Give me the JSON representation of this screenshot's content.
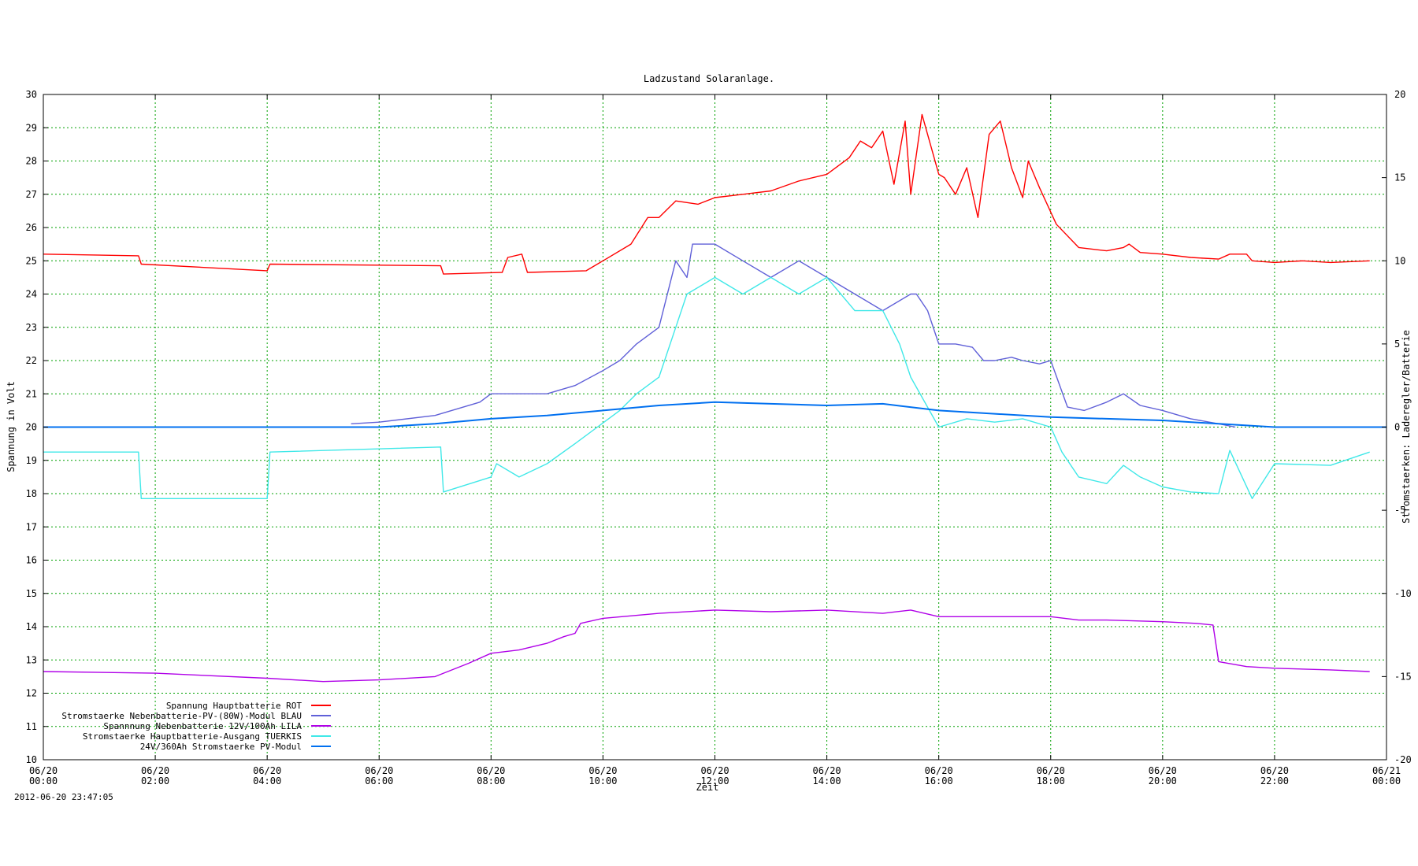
{
  "chart_data": {
    "type": "scatter",
    "title": "Ladzustand Solaranlage.",
    "xlabel": "Zeit",
    "ylabel": "Spannung in Volt",
    "y2label": "Stromstaerken: Laderegler/Batterie",
    "xlim": [
      0,
      24
    ],
    "ylim": [
      10,
      30
    ],
    "y2lim": [
      -20,
      20
    ],
    "grid": true,
    "legend_position": "bottom-left",
    "x_ticks": [
      {
        "date": "06/20",
        "time": "00:00"
      },
      {
        "date": "06/20",
        "time": "02:00"
      },
      {
        "date": "06/20",
        "time": "04:00"
      },
      {
        "date": "06/20",
        "time": "06:00"
      },
      {
        "date": "06/20",
        "time": "08:00"
      },
      {
        "date": "06/20",
        "time": "10:00"
      },
      {
        "date": "06/20",
        "time": "12:00"
      },
      {
        "date": "06/20",
        "time": "14:00"
      },
      {
        "date": "06/20",
        "time": "16:00"
      },
      {
        "date": "06/20",
        "time": "18:00"
      },
      {
        "date": "06/20",
        "time": "20:00"
      },
      {
        "date": "06/20",
        "time": "22:00"
      },
      {
        "date": "06/21",
        "time": "00:00"
      }
    ],
    "y_ticks": [
      "10",
      "11",
      "12",
      "13",
      "14",
      "15",
      "16",
      "17",
      "18",
      "19",
      "20",
      "21",
      "22",
      "23",
      "24",
      "25",
      "26",
      "27",
      "28",
      "29",
      "30"
    ],
    "y2_ticks": [
      "-20",
      "-15",
      "-10",
      "-5",
      "0",
      "5",
      "10",
      "15",
      "20"
    ],
    "series": [
      {
        "name": "Spannung Hauptbatterie ROT",
        "axis": "left",
        "color": "#ff0000",
        "x": [
          0,
          1.7,
          1.75,
          4,
          4.05,
          7.1,
          7.15,
          8.2,
          8.3,
          8.55,
          8.65,
          9.7,
          10,
          10.5,
          10.8,
          11,
          11.3,
          11.7,
          12,
          12.5,
          13,
          13.5,
          14,
          14.4,
          14.6,
          14.8,
          15,
          15.2,
          15.4,
          15.5,
          15.7,
          16,
          16.1,
          16.3,
          16.5,
          16.7,
          16.9,
          17.1,
          17.3,
          17.5,
          17.6,
          17.8,
          18.1,
          18.5,
          19,
          19.3,
          19.4,
          19.6,
          20,
          20.5,
          21,
          21.2,
          21.5,
          21.6,
          22,
          22.5,
          23,
          23.7
        ],
        "y": [
          25.2,
          25.15,
          24.9,
          24.7,
          24.9,
          24.85,
          24.6,
          24.65,
          25.1,
          25.2,
          24.65,
          24.7,
          25,
          25.5,
          26.3,
          26.3,
          26.8,
          26.7,
          26.9,
          27.0,
          27.1,
          27.4,
          27.6,
          28.1,
          28.6,
          28.4,
          28.9,
          27.3,
          29.2,
          27.0,
          29.4,
          27.6,
          27.5,
          27.0,
          27.8,
          26.3,
          28.8,
          29.2,
          27.8,
          26.9,
          28.0,
          27.2,
          26.1,
          25.4,
          25.3,
          25.4,
          25.5,
          25.25,
          25.2,
          25.1,
          25.05,
          25.2,
          25.2,
          25.0,
          24.95,
          25.0,
          24.95,
          25.0
        ]
      },
      {
        "name": "Stromstaerke Nebenbatterie-PV-(80W)-Modul BLAU",
        "axis": "right",
        "color": "#6060d8",
        "x": [
          5.5,
          6,
          7,
          7.8,
          8,
          8.5,
          9,
          9.5,
          10,
          10.3,
          10.6,
          11,
          11.3,
          11.5,
          11.6,
          12,
          12.5,
          13,
          13.5,
          14,
          14.5,
          15,
          15.5,
          15.6,
          15.8,
          16,
          16.3,
          16.6,
          16.8,
          17,
          17.3,
          17.5,
          17.8,
          18,
          18.3,
          18.6,
          19,
          19.3,
          19.6,
          20,
          20.5,
          21,
          21.3
        ],
        "y": [
          0.2,
          0.3,
          0.7,
          1.5,
          2,
          2,
          2,
          2.5,
          3.4,
          4.0,
          5,
          6,
          10,
          9,
          11,
          11,
          10,
          9,
          10,
          9,
          8,
          7,
          8,
          8,
          7,
          5,
          5,
          4.8,
          4,
          4,
          4.2,
          4,
          3.8,
          4,
          1.2,
          1,
          1.5,
          2,
          1.3,
          1,
          0.5,
          0.2,
          0
        ]
      },
      {
        "name": "Spannnung Nebenbatterie 12V/100Ah LILA",
        "axis": "left",
        "color": "#b000e8",
        "x": [
          0,
          2,
          4,
          5,
          6,
          7,
          7.6,
          8,
          8.5,
          9,
          9.3,
          9.5,
          9.6,
          10,
          11,
          12,
          13,
          14,
          15,
          15.5,
          16,
          17,
          18,
          18.5,
          19,
          20,
          20.6,
          20.9,
          21,
          21.5,
          22,
          23,
          23.7
        ],
        "y": [
          12.65,
          12.6,
          12.45,
          12.35,
          12.4,
          12.5,
          12.9,
          13.2,
          13.3,
          13.5,
          13.7,
          13.8,
          14.1,
          14.25,
          14.4,
          14.5,
          14.45,
          14.5,
          14.4,
          14.5,
          14.3,
          14.3,
          14.3,
          14.2,
          14.2,
          14.15,
          14.1,
          14.05,
          12.95,
          12.8,
          12.75,
          12.7,
          12.65
        ]
      },
      {
        "name": "Stromstaerke Hauptbatterie-Ausgang TUERKIS",
        "axis": "right",
        "color": "#40e8e8",
        "x": [
          0,
          1.7,
          1.75,
          4,
          4.05,
          7.1,
          7.15,
          8,
          8.1,
          8.5,
          9,
          9.5,
          9.9,
          10.3,
          10.6,
          11,
          11.3,
          11.5,
          12,
          12.5,
          13,
          13.5,
          14,
          14.5,
          15,
          15.3,
          15.5,
          16,
          16.5,
          17,
          17.5,
          18,
          18.2,
          18.5,
          19,
          19.3,
          19.6,
          20,
          20.5,
          21,
          21.2,
          21.6,
          22,
          23,
          23.7
        ],
        "y": [
          -1.5,
          -1.5,
          -4.3,
          -4.3,
          -1.5,
          -1.2,
          -3.9,
          -3,
          -2.2,
          -3,
          -2.2,
          -1,
          0,
          1,
          2,
          3,
          6,
          8,
          9,
          8,
          9,
          8,
          9,
          7,
          7,
          5,
          3,
          0,
          0.5,
          0.3,
          0.5,
          0,
          -1.5,
          -3,
          -3.4,
          -2.3,
          -3,
          -3.6,
          -3.9,
          -4,
          -1.4,
          -4.3,
          -2.2,
          -2.3,
          -1.5
        ]
      },
      {
        "name": "24V/360Ah Stromstaerke PV-Modul",
        "axis": "right",
        "color": "#0070f0",
        "x": [
          0,
          5,
          6,
          7,
          8,
          9,
          10,
          11,
          12,
          13,
          14,
          15,
          16,
          17,
          18,
          19,
          20,
          21,
          22,
          24
        ],
        "y": [
          0,
          0,
          0,
          0.2,
          0.5,
          0.7,
          1,
          1.3,
          1.5,
          1.4,
          1.3,
          1.4,
          1,
          0.8,
          0.6,
          0.5,
          0.4,
          0.2,
          0,
          0
        ]
      }
    ]
  },
  "timestamp": "2012-06-20 23:47:05"
}
